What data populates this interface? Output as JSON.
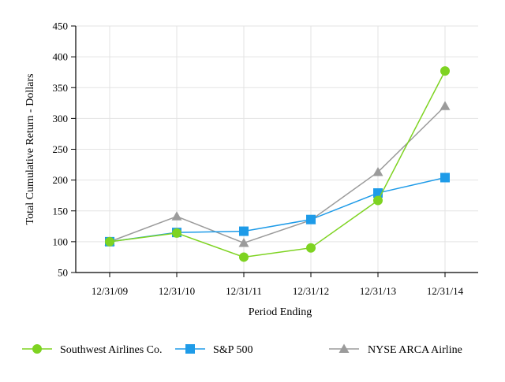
{
  "chart_data": {
    "type": "line",
    "title": "",
    "xlabel": "Period Ending",
    "ylabel": "Total Cumulative Return - Dollars",
    "categories": [
      "12/31/09",
      "12/31/10",
      "12/31/11",
      "12/31/12",
      "12/31/13",
      "12/31/14"
    ],
    "ylim": [
      50,
      450
    ],
    "yticks": [
      50,
      100,
      150,
      200,
      250,
      300,
      350,
      400,
      450
    ],
    "grid": "vertical and horizontal gridlines",
    "legend_placement": "bottom",
    "series": [
      {
        "name": "Southwest Airlines Co.",
        "values": [
          100,
          114,
          75,
          90,
          167,
          377
        ],
        "color": "#7ed321",
        "marker": "circle"
      },
      {
        "name": "S&P 500",
        "values": [
          100,
          115,
          117,
          136,
          179,
          204
        ],
        "color": "#1e9be8",
        "marker": "square"
      },
      {
        "name": "NYSE ARCA Airline",
        "values": [
          100,
          141,
          98,
          135,
          213,
          320
        ],
        "color": "#9b9b9b",
        "marker": "triangle"
      }
    ]
  }
}
